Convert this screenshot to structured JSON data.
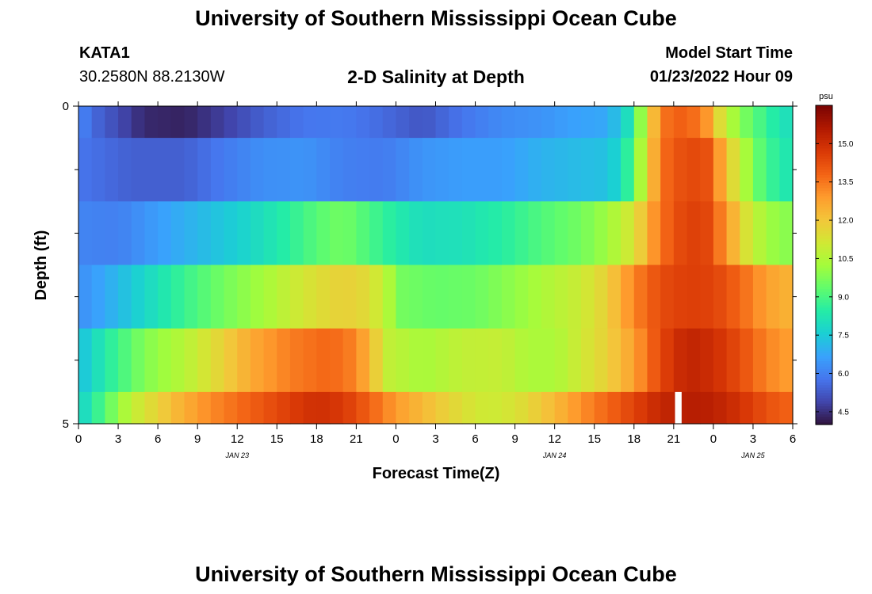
{
  "page": {
    "title_top": "University of Southern Mississippi Ocean Cube",
    "title_bottom": "University of Southern Mississippi Ocean Cube"
  },
  "header": {
    "station": "KATA1",
    "coords": "30.2580N  88.2130W",
    "plot_title": "2-D Salinity at Depth",
    "model_label": "Model Start Time",
    "model_value": "01/23/2022 Hour 09"
  },
  "chart_data": {
    "type": "heatmap",
    "title": "2-D Salinity at Depth",
    "xlabel": "Forecast Time(Z)",
    "ylabel": "Depth (ft)",
    "colorbar_unit": "psu",
    "x_start_hour": 0,
    "x_end_hour": 54,
    "xlim": [
      0,
      54
    ],
    "ylim": [
      0,
      5
    ],
    "x_tick_labels": [
      "0",
      "3",
      "6",
      "9",
      "12",
      "15",
      "18",
      "21",
      "0",
      "3",
      "6",
      "9",
      "12",
      "15",
      "18",
      "21",
      "0",
      "3",
      "6"
    ],
    "date_labels": [
      {
        "text": "JAN 23",
        "hour": 12
      },
      {
        "text": "JAN 24",
        "hour": 36
      },
      {
        "text": "JAN 25",
        "hour": 51
      }
    ],
    "y_tick_labels": [
      "0",
      "5"
    ],
    "y_minor_ticks": [
      1,
      2,
      3,
      4
    ],
    "colorbar_ticks": [
      "4.5",
      "6.0",
      "7.5",
      "9.0",
      "10.5",
      "12.0",
      "13.5",
      "15.0"
    ],
    "colorbar_range": [
      4.0,
      16.5
    ],
    "colormap": [
      "#30123b",
      "#4145ab",
      "#4675ed",
      "#39a2fc",
      "#1bcfd4",
      "#24eca6",
      "#61fc6c",
      "#a4fc3b",
      "#d1e834",
      "#f3c63a",
      "#fe9b2d",
      "#f36315",
      "#d93806",
      "#b11901",
      "#7a0403"
    ],
    "gap": {
      "hour_start": 45.1,
      "hour_end": 45.6,
      "layer": 5
    },
    "layers": [
      {
        "depth_top": 0,
        "depth_bottom": 0.5,
        "keys": [
          [
            0,
            6.2
          ],
          [
            1,
            5.6
          ],
          [
            3,
            5.0
          ],
          [
            5,
            4.4
          ],
          [
            8,
            4.3
          ],
          [
            11,
            4.8
          ],
          [
            14,
            5.4
          ],
          [
            17,
            5.8
          ],
          [
            20,
            5.9
          ],
          [
            23,
            5.6
          ],
          [
            26,
            5.2
          ],
          [
            29,
            5.8
          ],
          [
            32,
            6.2
          ],
          [
            35,
            6.4
          ],
          [
            38,
            6.7
          ],
          [
            40,
            6.8
          ],
          [
            41,
            7.5
          ],
          [
            41.8,
            8.3
          ],
          [
            42.5,
            10.0
          ],
          [
            43.3,
            12.0
          ],
          [
            44.3,
            13.6
          ],
          [
            46,
            14.0
          ],
          [
            47.5,
            13.0
          ],
          [
            48.6,
            11.3
          ],
          [
            49.8,
            10.0
          ],
          [
            51.5,
            9.0
          ],
          [
            53,
            8.2
          ],
          [
            54,
            8.0
          ]
        ]
      },
      {
        "depth_top": 0.5,
        "depth_bottom": 1.5,
        "keys": [
          [
            0,
            5.8
          ],
          [
            4,
            5.4
          ],
          [
            8,
            5.4
          ],
          [
            11,
            5.9
          ],
          [
            14,
            6.3
          ],
          [
            17,
            6.4
          ],
          [
            20,
            6.0
          ],
          [
            23,
            5.9
          ],
          [
            26,
            6.4
          ],
          [
            29,
            6.6
          ],
          [
            32,
            6.6
          ],
          [
            35,
            7.0
          ],
          [
            38,
            7.2
          ],
          [
            40,
            7.3
          ],
          [
            41,
            7.9
          ],
          [
            42,
            9.3
          ],
          [
            43,
            11.5
          ],
          [
            44,
            13.6
          ],
          [
            46,
            14.4
          ],
          [
            47.5,
            14.2
          ],
          [
            48.7,
            12.6
          ],
          [
            50,
            10.8
          ],
          [
            51.5,
            9.3
          ],
          [
            53,
            8.4
          ],
          [
            54,
            8.2
          ]
        ]
      },
      {
        "depth_top": 1.5,
        "depth_bottom": 2.5,
        "keys": [
          [
            0,
            6.1
          ],
          [
            3,
            6.0
          ],
          [
            6,
            6.6
          ],
          [
            9,
            7.1
          ],
          [
            12,
            7.6
          ],
          [
            15,
            8.3
          ],
          [
            18,
            9.2
          ],
          [
            20,
            9.6
          ],
          [
            22,
            9.0
          ],
          [
            24,
            8.4
          ],
          [
            26,
            8.0
          ],
          [
            29,
            8.1
          ],
          [
            32,
            8.5
          ],
          [
            35,
            9.1
          ],
          [
            38,
            9.6
          ],
          [
            40,
            10.2
          ],
          [
            42,
            11.3
          ],
          [
            44,
            13.6
          ],
          [
            46,
            14.6
          ],
          [
            47.5,
            14.4
          ],
          [
            49,
            13.0
          ],
          [
            50.5,
            11.3
          ],
          [
            52,
            10.2
          ],
          [
            54,
            9.8
          ]
        ]
      },
      {
        "depth_top": 2.5,
        "depth_bottom": 3.5,
        "keys": [
          [
            0,
            6.3
          ],
          [
            2,
            6.8
          ],
          [
            5,
            7.8
          ],
          [
            8,
            8.8
          ],
          [
            11,
            9.6
          ],
          [
            14,
            10.3
          ],
          [
            17,
            11.2
          ],
          [
            20,
            11.8
          ],
          [
            22,
            11.5
          ],
          [
            23.5,
            10.4
          ],
          [
            24.5,
            9.6
          ],
          [
            27,
            9.4
          ],
          [
            30,
            9.5
          ],
          [
            33,
            10.0
          ],
          [
            36,
            10.6
          ],
          [
            38,
            11.0
          ],
          [
            40,
            11.8
          ],
          [
            42,
            13.3
          ],
          [
            44,
            14.3
          ],
          [
            46,
            14.6
          ],
          [
            48,
            14.5
          ],
          [
            50,
            13.8
          ],
          [
            52,
            12.8
          ],
          [
            54,
            12.4
          ]
        ]
      },
      {
        "depth_top": 3.5,
        "depth_bottom": 4.5,
        "keys": [
          [
            0,
            7.2
          ],
          [
            2,
            8.4
          ],
          [
            5,
            9.8
          ],
          [
            8,
            10.6
          ],
          [
            11,
            11.8
          ],
          [
            13,
            12.6
          ],
          [
            16,
            13.4
          ],
          [
            19,
            13.8
          ],
          [
            21,
            13.3
          ],
          [
            22.5,
            11.8
          ],
          [
            23.5,
            10.8
          ],
          [
            26,
            10.3
          ],
          [
            29,
            10.8
          ],
          [
            32,
            10.9
          ],
          [
            34,
            10.4
          ],
          [
            36,
            10.4
          ],
          [
            38,
            11.1
          ],
          [
            40,
            11.8
          ],
          [
            42,
            12.8
          ],
          [
            44,
            14.4
          ],
          [
            46,
            15.3
          ],
          [
            48,
            15.0
          ],
          [
            50,
            14.3
          ],
          [
            52,
            13.3
          ],
          [
            54,
            12.8
          ]
        ]
      },
      {
        "depth_top": 4.5,
        "depth_bottom": 5.0,
        "keys": [
          [
            0,
            7.6
          ],
          [
            2,
            9.2
          ],
          [
            4,
            10.8
          ],
          [
            7,
            12.2
          ],
          [
            10,
            13.2
          ],
          [
            13,
            13.9
          ],
          [
            16,
            14.6
          ],
          [
            18,
            15.0
          ],
          [
            20,
            14.7
          ],
          [
            22,
            13.9
          ],
          [
            24,
            12.9
          ],
          [
            26,
            12.3
          ],
          [
            29,
            11.4
          ],
          [
            31,
            11.0
          ],
          [
            33,
            11.3
          ],
          [
            36,
            12.3
          ],
          [
            38,
            13.1
          ],
          [
            40,
            13.8
          ],
          [
            42,
            14.5
          ],
          [
            44,
            15.2
          ],
          [
            46,
            15.5
          ],
          [
            48,
            15.4
          ],
          [
            50,
            14.9
          ],
          [
            52,
            14.2
          ],
          [
            54,
            13.8
          ]
        ]
      }
    ]
  }
}
